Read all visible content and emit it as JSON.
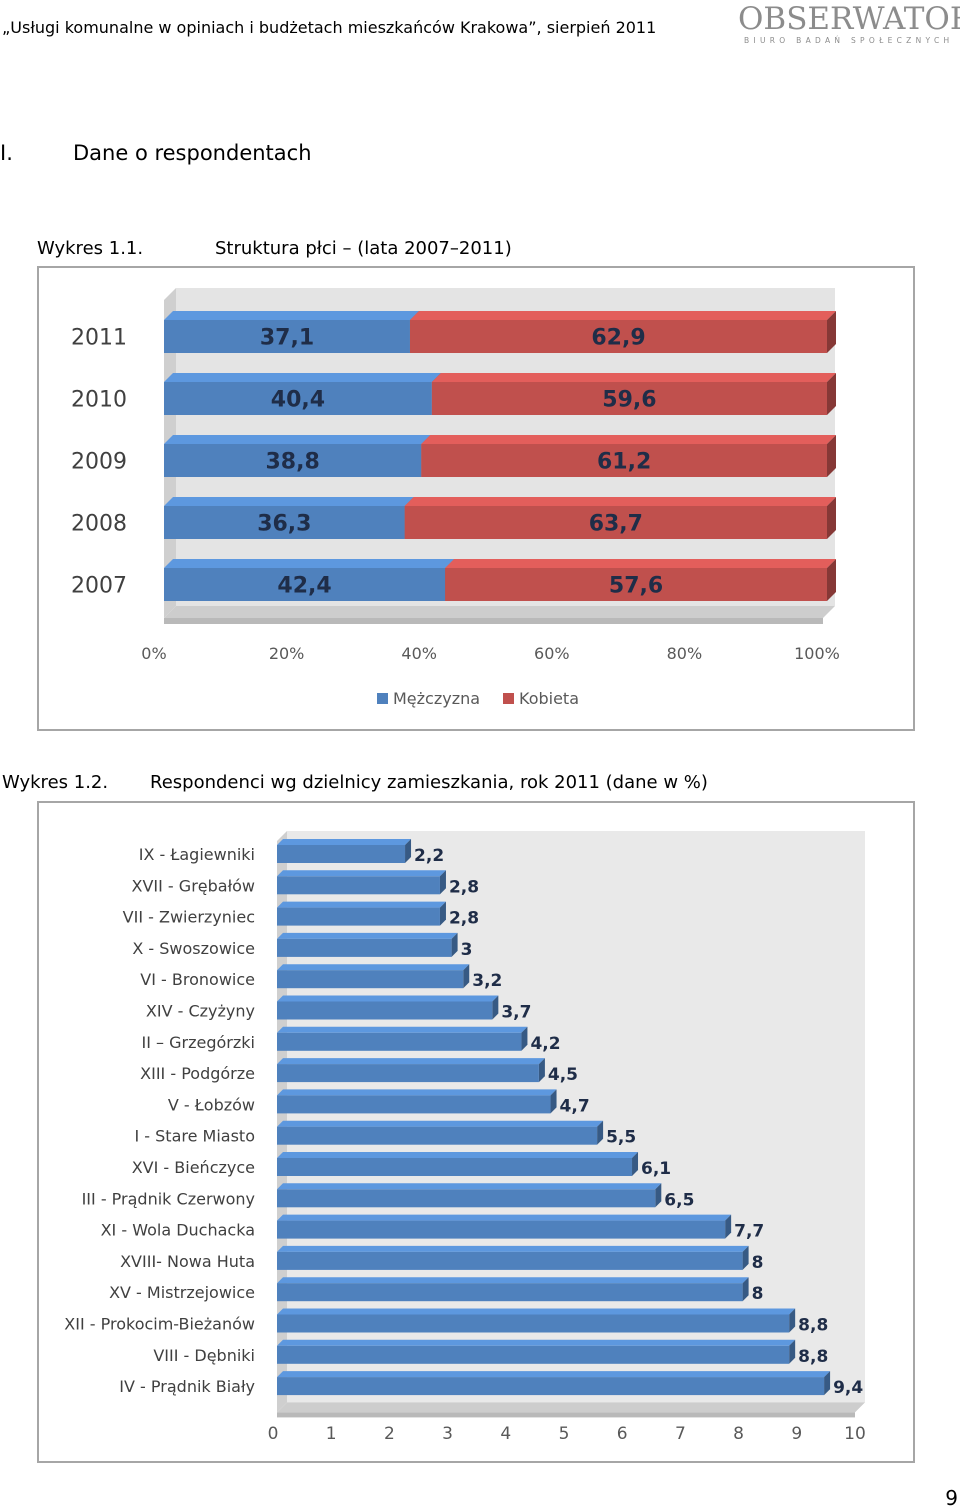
{
  "header": {
    "title": "„Usługi komunalne w opiniach i budżetach mieszkańców Krakowa”, sierpień 2011",
    "logo_main": "OBSERWATOR",
    "logo_sub": "BIURO BADAŃ SPOŁECZNYCH"
  },
  "section": {
    "number": "I.",
    "title": "Dane o respondentach"
  },
  "figure1": {
    "caption_number": "Wykres 1.1.",
    "caption_title": "Struktura płci – (lata 2007–2011)"
  },
  "figure2": {
    "caption_number": "Wykres 1.2.",
    "caption_title": "Respondenci wg dzielnicy zamieszkania, rok 2011 (dane w %)"
  },
  "page_number": "9",
  "colors": {
    "male": "#4f81bd",
    "female": "#c0504d",
    "district_bar": "#4f81bd",
    "plot_bg": "#e9e9e9"
  },
  "chart_data": [
    {
      "type": "bar",
      "orientation": "horizontal",
      "stacked": "100%",
      "categories": [
        "2011",
        "2010",
        "2009",
        "2008",
        "2007"
      ],
      "series": [
        {
          "name": "Mężczyzna",
          "values": [
            37.1,
            40.4,
            38.8,
            36.3,
            42.4
          ],
          "labels": [
            "37,1",
            "40,4",
            "38,8",
            "36,3",
            "42,4"
          ]
        },
        {
          "name": "Kobieta",
          "values": [
            62.9,
            59.6,
            61.2,
            63.7,
            57.6
          ],
          "labels": [
            "62,9",
            "59,6",
            "61,2",
            "63,7",
            "57,6"
          ]
        }
      ],
      "xlim": [
        0,
        100
      ],
      "x_ticks": [
        "0%",
        "20%",
        "40%",
        "60%",
        "80%",
        "100%"
      ],
      "legend": "bottom"
    },
    {
      "type": "bar",
      "orientation": "horizontal",
      "categories": [
        "IX - Łagiewniki",
        "XVII - Grębałów",
        "VII - Zwierzyniec",
        "X - Swoszowice",
        "VI - Bronowice",
        "XIV - Czyżyny",
        "II – Grzegórzki",
        "XIII - Podgórze",
        "V - Łobzów",
        "I - Stare Miasto",
        "XVI - Bieńczyce",
        "III - Prądnik Czerwony",
        "XI - Wola Duchacka",
        "XVIII- Nowa Huta",
        "XV - Mistrzejowice",
        "XII - Prokocim-Bieżanów",
        "VIII - Dębniki",
        "IV - Prądnik Biały"
      ],
      "values": [
        2.2,
        2.8,
        2.8,
        3,
        3.2,
        3.7,
        4.2,
        4.5,
        4.7,
        5.5,
        6.1,
        6.5,
        7.7,
        8,
        8,
        8.8,
        8.8,
        9.4
      ],
      "labels": [
        "2,2",
        "2,8",
        "2,8",
        "3",
        "3,2",
        "3,7",
        "4,2",
        "4,5",
        "4,7",
        "5,5",
        "6,1",
        "6,5",
        "7,7",
        "8",
        "8",
        "8,8",
        "8,8",
        "9,4"
      ],
      "xlim": [
        0,
        10
      ],
      "x_ticks": [
        "0",
        "1",
        "2",
        "3",
        "4",
        "5",
        "6",
        "7",
        "8",
        "9",
        "10"
      ]
    }
  ]
}
